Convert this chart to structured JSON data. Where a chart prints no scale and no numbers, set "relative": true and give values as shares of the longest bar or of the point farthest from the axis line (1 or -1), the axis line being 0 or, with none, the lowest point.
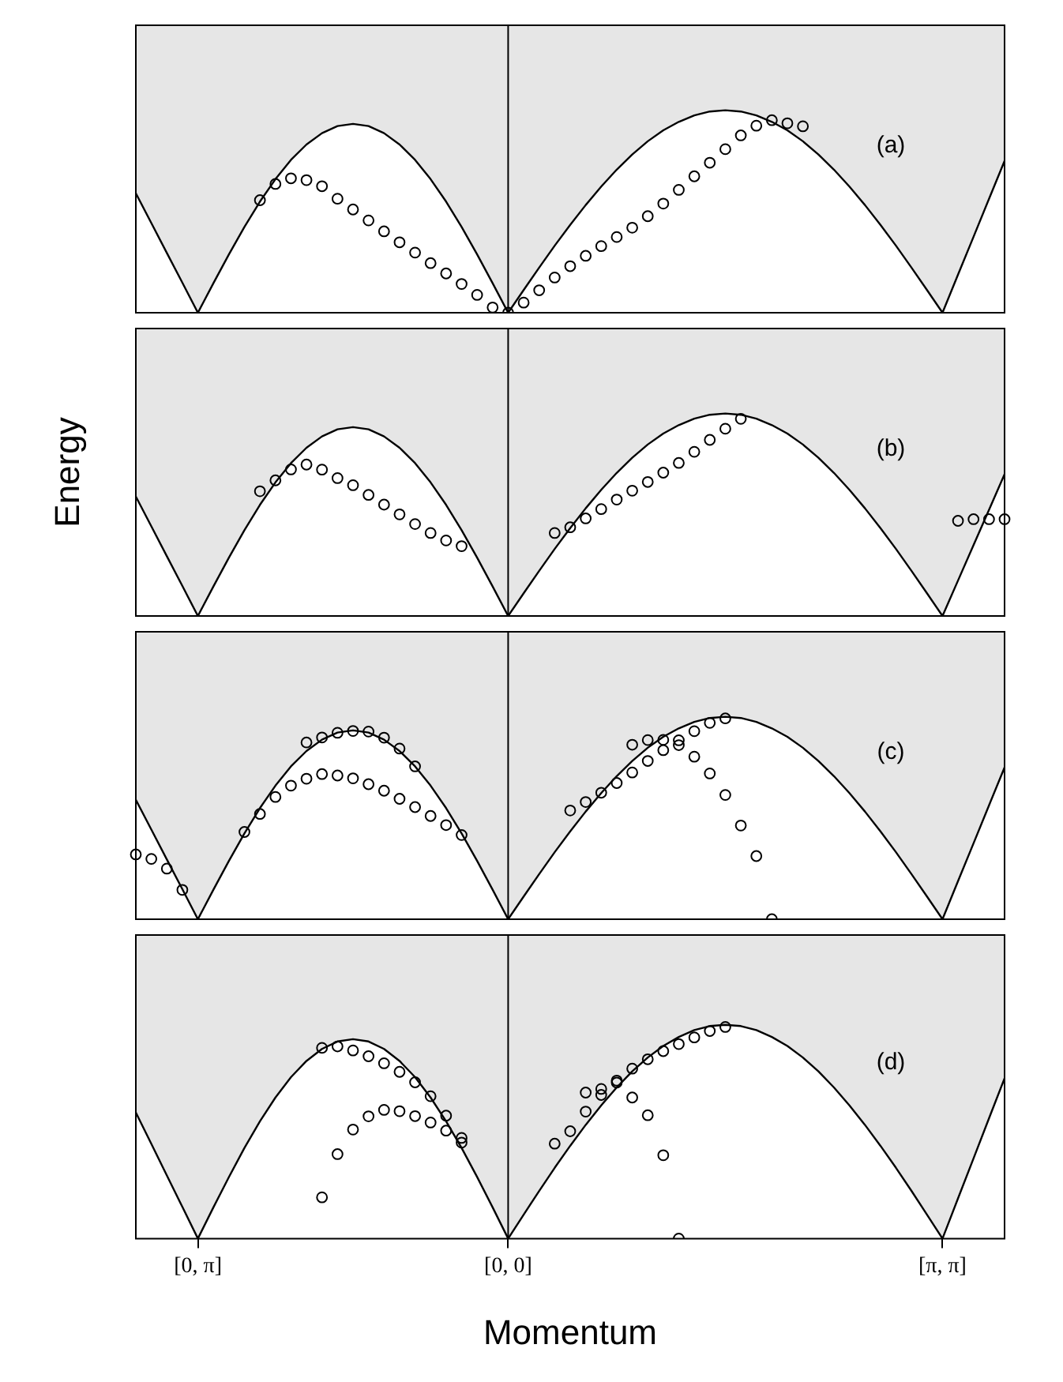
{
  "chart_data": [
    {
      "type": "scatter",
      "relative": true,
      "marker": "circle",
      "tick_labels": false,
      "categories": [
        null,
        null,
        null,
        null,
        "[0, π]",
        null,
        null,
        null,
        null,
        null,
        null,
        null,
        null,
        null,
        null,
        null,
        null,
        null,
        null,
        null,
        null,
        null,
        null,
        null,
        "[0, 0]",
        null,
        null,
        null,
        null,
        null,
        null,
        null,
        null,
        null,
        null,
        null,
        null,
        null,
        null,
        null,
        null,
        null,
        null,
        null,
        null,
        null,
        null,
        null,
        null,
        null,
        null,
        null,
        "[π, π]",
        null,
        null,
        null,
        null
      ],
      "ref_lines": [
        {
          "axis": "x",
          "value": "[0, 0]",
          "color": "#000000"
        }
      ],
      "annotations": [
        "(a)"
      ],
      "series": [
        {
          "type": "area",
          "marker": "none",
          "color": "#000000",
          "values": [
            0.59,
            0.443,
            0.295,
            0.148,
            0,
            0.146,
            0.288,
            0.424,
            0.549,
            0.66,
            0.755,
            0.831,
            0.887,
            0.922,
            0.933,
            0.922,
            0.887,
            0.831,
            0.755,
            0.66,
            0.549,
            0.424,
            0.288,
            0.146,
            0,
            0.112,
            0.223,
            0.331,
            0.434,
            0.532,
            0.623,
            0.707,
            0.782,
            0.847,
            0.901,
            0.943,
            0.975,
            0.994,
            1,
            0.994,
            0.975,
            0.943,
            0.901,
            0.847,
            0.782,
            0.707,
            0.623,
            0.532,
            0.434,
            0.331,
            0.223,
            0.112,
            0,
            0.188,
            0.375,
            0.563,
            0.75
          ]
        },
        {
          "color": "#000000",
          "values": [
            null,
            null,
            null,
            null,
            null,
            null,
            null,
            null,
            0.556,
            0.636,
            0.664,
            0.655,
            0.625,
            0.563,
            0.51,
            0.456,
            0.402,
            0.348,
            0.297,
            0.245,
            0.194,
            0.142,
            0.088,
            0.026,
            null,
            null,
            null,
            null,
            null,
            null,
            null,
            null,
            null,
            null,
            null,
            null,
            null,
            null,
            null,
            null,
            null,
            null,
            null,
            null,
            null,
            null,
            null,
            null,
            null,
            null,
            null,
            null,
            null,
            null,
            null,
            null,
            null
          ]
        },
        {
          "color": "#000000",
          "values": [
            null,
            null,
            null,
            null,
            null,
            null,
            null,
            null,
            null,
            null,
            null,
            null,
            null,
            null,
            null,
            null,
            null,
            null,
            null,
            null,
            null,
            null,
            null,
            null,
            0,
            0.05,
            0.111,
            0.174,
            0.23,
            0.281,
            0.329,
            0.374,
            0.42,
            0.477,
            0.539,
            0.607,
            0.674,
            0.741,
            0.808,
            0.876,
            0.924,
            0.951,
            0.936,
            0.921,
            null,
            null,
            null,
            null,
            null,
            null,
            null,
            null,
            null,
            null,
            null,
            null,
            null
          ]
        }
      ]
    },
    {
      "type": "scatter",
      "ylabel": "Energy",
      "relative": true,
      "marker": "circle",
      "tick_labels": false,
      "categories": [
        null,
        null,
        null,
        null,
        "[0, π]",
        null,
        null,
        null,
        null,
        null,
        null,
        null,
        null,
        null,
        null,
        null,
        null,
        null,
        null,
        null,
        null,
        null,
        null,
        null,
        "[0, 0]",
        null,
        null,
        null,
        null,
        null,
        null,
        null,
        null,
        null,
        null,
        null,
        null,
        null,
        null,
        null,
        null,
        null,
        null,
        null,
        null,
        null,
        null,
        null,
        null,
        null,
        null,
        null,
        "[π, π]",
        null,
        null,
        null,
        null
      ],
      "ref_lines": [
        {
          "axis": "x",
          "value": "[0, 0]",
          "color": "#000000"
        }
      ],
      "annotations": [
        "(b)"
      ],
      "series": [
        {
          "type": "area",
          "marker": "none",
          "color": "#000000",
          "values": [
            0.59,
            0.443,
            0.295,
            0.148,
            0,
            0.146,
            0.288,
            0.424,
            0.549,
            0.66,
            0.755,
            0.831,
            0.887,
            0.922,
            0.933,
            0.922,
            0.887,
            0.831,
            0.755,
            0.66,
            0.549,
            0.424,
            0.288,
            0.146,
            0,
            0.112,
            0.223,
            0.331,
            0.434,
            0.532,
            0.623,
            0.707,
            0.782,
            0.847,
            0.901,
            0.943,
            0.975,
            0.994,
            1,
            0.994,
            0.975,
            0.943,
            0.901,
            0.847,
            0.782,
            0.707,
            0.623,
            0.532,
            0.434,
            0.331,
            0.223,
            0.112,
            0,
            0.175,
            0.35,
            0.525,
            0.7
          ]
        },
        {
          "color": "#000000",
          "values": [
            null,
            null,
            null,
            null,
            null,
            null,
            null,
            null,
            0.616,
            0.67,
            0.724,
            0.748,
            0.723,
            0.681,
            0.646,
            0.598,
            0.55,
            0.502,
            0.454,
            0.41,
            0.373,
            0.345,
            null,
            null,
            null,
            null,
            null,
            null,
            null,
            null,
            null,
            null,
            null,
            null,
            null,
            null,
            null,
            null,
            null,
            null,
            null,
            null,
            null,
            null,
            null,
            null,
            null,
            null,
            null,
            null,
            null,
            null,
            null,
            null,
            null,
            null,
            null
          ]
        },
        {
          "color": "#000000",
          "values": [
            null,
            null,
            null,
            null,
            null,
            null,
            null,
            null,
            null,
            null,
            null,
            null,
            null,
            null,
            null,
            null,
            null,
            null,
            null,
            null,
            null,
            null,
            null,
            null,
            null,
            null,
            null,
            0.41,
            0.438,
            0.482,
            0.528,
            0.575,
            0.619,
            0.662,
            0.708,
            0.756,
            0.811,
            0.87,
            0.925,
            0.974,
            null,
            null,
            null,
            null,
            null,
            null,
            null,
            null,
            null,
            null,
            null,
            null,
            null,
            null,
            null,
            null,
            null
          ]
        },
        {
          "color": "#000000",
          "values": [
            null,
            null,
            null,
            null,
            null,
            null,
            null,
            null,
            null,
            null,
            null,
            null,
            null,
            null,
            null,
            null,
            null,
            null,
            null,
            null,
            null,
            null,
            null,
            null,
            null,
            null,
            null,
            null,
            null,
            null,
            null,
            null,
            null,
            null,
            null,
            null,
            null,
            null,
            null,
            null,
            null,
            null,
            null,
            null,
            null,
            null,
            null,
            null,
            null,
            null,
            null,
            null,
            null,
            0.47,
            0.478,
            0.478,
            0.478
          ]
        }
      ]
    },
    {
      "type": "scatter",
      "relative": true,
      "marker": "circle",
      "tick_labels": false,
      "categories": [
        null,
        null,
        null,
        null,
        "[0, π]",
        null,
        null,
        null,
        null,
        null,
        null,
        null,
        null,
        null,
        null,
        null,
        null,
        null,
        null,
        null,
        null,
        null,
        null,
        null,
        "[0, 0]",
        null,
        null,
        null,
        null,
        null,
        null,
        null,
        null,
        null,
        null,
        null,
        null,
        null,
        null,
        null,
        null,
        null,
        null,
        null,
        null,
        null,
        null,
        null,
        null,
        null,
        null,
        null,
        "[π, π]",
        null,
        null,
        null,
        null
      ],
      "ref_lines": [
        {
          "axis": "x",
          "value": "[0, 0]",
          "color": "#000000"
        }
      ],
      "annotations": [
        "(c)"
      ],
      "series": [
        {
          "type": "area",
          "marker": "none",
          "color": "#000000",
          "values": [
            0.59,
            0.443,
            0.295,
            0.148,
            0,
            0.146,
            0.288,
            0.424,
            0.549,
            0.66,
            0.755,
            0.831,
            0.887,
            0.922,
            0.933,
            0.922,
            0.887,
            0.831,
            0.755,
            0.66,
            0.549,
            0.424,
            0.288,
            0.146,
            0,
            0.112,
            0.223,
            0.331,
            0.434,
            0.532,
            0.623,
            0.707,
            0.782,
            0.847,
            0.901,
            0.943,
            0.975,
            0.994,
            1,
            0.994,
            0.975,
            0.943,
            0.901,
            0.847,
            0.782,
            0.707,
            0.623,
            0.532,
            0.434,
            0.331,
            0.223,
            0.112,
            0,
            0.188,
            0.375,
            0.563,
            0.75
          ]
        },
        {
          "color": "#000000",
          "values": [
            0.32,
            0.298,
            0.25,
            0.145,
            null,
            null,
            null,
            null,
            null,
            null,
            null,
            null,
            null,
            null,
            null,
            null,
            null,
            null,
            null,
            null,
            null,
            null,
            null,
            null,
            null,
            null,
            null,
            null,
            null,
            null,
            null,
            null,
            null,
            null,
            null,
            null,
            null,
            null,
            null,
            null,
            null,
            null,
            null,
            null,
            null,
            null,
            null,
            null,
            null,
            null,
            null,
            null,
            null,
            null,
            null,
            null,
            null
          ]
        },
        {
          "color": "#000000",
          "values": [
            null,
            null,
            null,
            null,
            null,
            null,
            null,
            null,
            null,
            null,
            null,
            0.873,
            0.898,
            0.921,
            0.93,
            0.927,
            0.897,
            0.843,
            0.755,
            null,
            null,
            null,
            null,
            null,
            null,
            null,
            null,
            null,
            null,
            null,
            null,
            null,
            null,
            null,
            null,
            null,
            null,
            null,
            null,
            null,
            null,
            null,
            null,
            null,
            null,
            null,
            null,
            null,
            null,
            null,
            null,
            null,
            null,
            null,
            null,
            null,
            null
          ]
        },
        {
          "color": "#000000",
          "values": [
            null,
            null,
            null,
            null,
            null,
            null,
            null,
            0.431,
            0.52,
            0.604,
            0.66,
            0.694,
            0.717,
            0.71,
            0.696,
            0.667,
            0.635,
            0.595,
            0.554,
            0.51,
            0.465,
            0.416,
            null,
            null,
            null,
            null,
            null,
            null,
            null,
            null,
            null,
            null,
            null,
            null,
            null,
            null,
            null,
            null,
            null,
            null,
            null,
            null,
            null,
            null,
            null,
            null,
            null,
            null,
            null,
            null,
            null,
            null,
            null,
            null,
            null,
            null,
            null
          ]
        },
        {
          "color": "#000000",
          "values": [
            null,
            null,
            null,
            null,
            null,
            null,
            null,
            null,
            null,
            null,
            null,
            null,
            null,
            null,
            null,
            null,
            null,
            null,
            null,
            null,
            null,
            null,
            null,
            null,
            null,
            null,
            null,
            null,
            0.537,
            0.579,
            0.625,
            0.673,
            0.725,
            0.782,
            0.835,
            0.884,
            0.929,
            0.97,
            0.992,
            null,
            null,
            null,
            null,
            null,
            null,
            null,
            null,
            null,
            null,
            null,
            null,
            null,
            null,
            null,
            null,
            null,
            null
          ]
        },
        {
          "color": "#000000",
          "values": [
            null,
            null,
            null,
            null,
            null,
            null,
            null,
            null,
            null,
            null,
            null,
            null,
            null,
            null,
            null,
            null,
            null,
            null,
            null,
            null,
            null,
            null,
            null,
            null,
            null,
            null,
            null,
            null,
            null,
            null,
            null,
            null,
            0.862,
            0.885,
            0.886,
            0.86,
            0.803,
            0.72,
            0.614,
            0.463,
            0.312,
            0,
            null,
            null,
            null,
            null,
            null,
            null,
            null,
            null,
            null,
            null,
            null,
            null,
            null,
            null,
            null
          ]
        }
      ]
    },
    {
      "type": "scatter",
      "xlabel": "Momentum",
      "relative": true,
      "marker": "circle",
      "tick_labels": "x",
      "categories": [
        null,
        null,
        null,
        null,
        "[0, π]",
        null,
        null,
        null,
        null,
        null,
        null,
        null,
        null,
        null,
        null,
        null,
        null,
        null,
        null,
        null,
        null,
        null,
        null,
        null,
        "[0, 0]",
        null,
        null,
        null,
        null,
        null,
        null,
        null,
        null,
        null,
        null,
        null,
        null,
        null,
        null,
        null,
        null,
        null,
        null,
        null,
        null,
        null,
        null,
        null,
        null,
        null,
        null,
        null,
        "[π, π]",
        null,
        null,
        null,
        null
      ],
      "ref_lines": [
        {
          "axis": "x",
          "value": "[0, 0]",
          "color": "#000000"
        }
      ],
      "annotations": [
        "(d)"
      ],
      "series": [
        {
          "type": "area",
          "marker": "none",
          "color": "#000000",
          "values": [
            0.59,
            0.443,
            0.295,
            0.148,
            0,
            0.146,
            0.288,
            0.424,
            0.549,
            0.66,
            0.755,
            0.831,
            0.887,
            0.922,
            0.933,
            0.922,
            0.887,
            0.831,
            0.755,
            0.66,
            0.549,
            0.424,
            0.288,
            0.146,
            0,
            0.112,
            0.223,
            0.331,
            0.434,
            0.532,
            0.623,
            0.707,
            0.782,
            0.847,
            0.901,
            0.943,
            0.975,
            0.994,
            1,
            0.994,
            0.975,
            0.943,
            0.901,
            0.847,
            0.782,
            0.707,
            0.623,
            0.532,
            0.434,
            0.331,
            0.223,
            0.112,
            0,
            0.188,
            0.375,
            0.563,
            0.75
          ]
        },
        {
          "color": "#000000",
          "values": [
            null,
            null,
            null,
            null,
            null,
            null,
            null,
            null,
            null,
            null,
            null,
            null,
            0.892,
            0.899,
            0.88,
            0.853,
            0.82,
            0.78,
            0.731,
            0.666,
            0.575,
            0.449,
            null,
            null,
            null,
            null,
            null,
            null,
            null,
            null,
            null,
            null,
            null,
            null,
            null,
            null,
            null,
            null,
            null,
            null,
            null,
            null,
            null,
            null,
            null,
            null,
            null,
            null,
            null,
            null,
            null,
            null,
            null,
            null,
            null,
            null,
            null
          ]
        },
        {
          "color": "#000000",
          "values": [
            null,
            null,
            null,
            null,
            null,
            null,
            null,
            null,
            null,
            null,
            null,
            null,
            0.193,
            0.395,
            0.51,
            0.572,
            0.602,
            0.596,
            0.573,
            0.543,
            0.505,
            0.471,
            null,
            null,
            null,
            null,
            null,
            null,
            null,
            null,
            null,
            null,
            null,
            null,
            null,
            null,
            null,
            null,
            null,
            null,
            null,
            null,
            null,
            null,
            null,
            null,
            null,
            null,
            null,
            null,
            null,
            null,
            null,
            null,
            null,
            null,
            null
          ]
        },
        {
          "color": "#000000",
          "values": [
            null,
            null,
            null,
            null,
            null,
            null,
            null,
            null,
            null,
            null,
            null,
            null,
            null,
            null,
            null,
            null,
            null,
            null,
            null,
            null,
            null,
            null,
            null,
            null,
            null,
            null,
            null,
            0.444,
            0.502,
            0.594,
            0.672,
            0.739,
            0.795,
            0.839,
            0.877,
            0.91,
            0.941,
            0.971,
            0.99,
            null,
            null,
            null,
            null,
            null,
            null,
            null,
            null,
            null,
            null,
            null,
            null,
            null,
            null,
            null,
            null,
            null,
            null
          ]
        },
        {
          "color": "#000000",
          "values": [
            null,
            null,
            null,
            null,
            null,
            null,
            null,
            null,
            null,
            null,
            null,
            null,
            null,
            null,
            null,
            null,
            null,
            null,
            null,
            null,
            null,
            null,
            null,
            null,
            null,
            null,
            null,
            null,
            null,
            0.683,
            0.7,
            0.73,
            0.66,
            0.577,
            0.39,
            0,
            null,
            null,
            null,
            null,
            null,
            null,
            null,
            null,
            null,
            null,
            null,
            null,
            null,
            null,
            null,
            null,
            null,
            null,
            null,
            null,
            null
          ]
        }
      ]
    }
  ]
}
